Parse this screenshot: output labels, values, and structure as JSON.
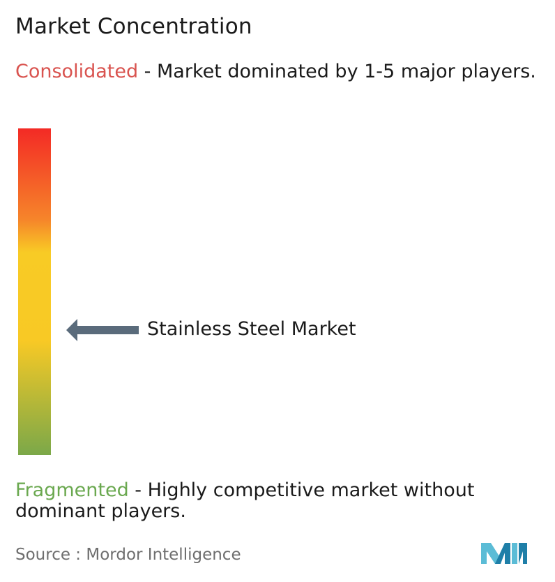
{
  "title": "Market Concentration",
  "consolidated": {
    "label": "Consolidated",
    "description": " - Market dominated by 1-5 major players.",
    "color": "#d9534f"
  },
  "fragmented": {
    "label": "Fragmented",
    "description": " - Highly competitive market without dominant players.",
    "color": "#6aa84f"
  },
  "marker": {
    "label": "Stainless Steel Market",
    "level": 0.38
  },
  "scale_colors": [
    "#f32a25",
    "#f6852a",
    "#f8cb25",
    "#7ba849"
  ],
  "source": {
    "prefix": "Source : ",
    "name": "Mordor Intelligence"
  },
  "logo": {
    "icon": "mordor-intelligence-logo",
    "colors": [
      "#5bbcd6",
      "#1f7fa8"
    ]
  }
}
